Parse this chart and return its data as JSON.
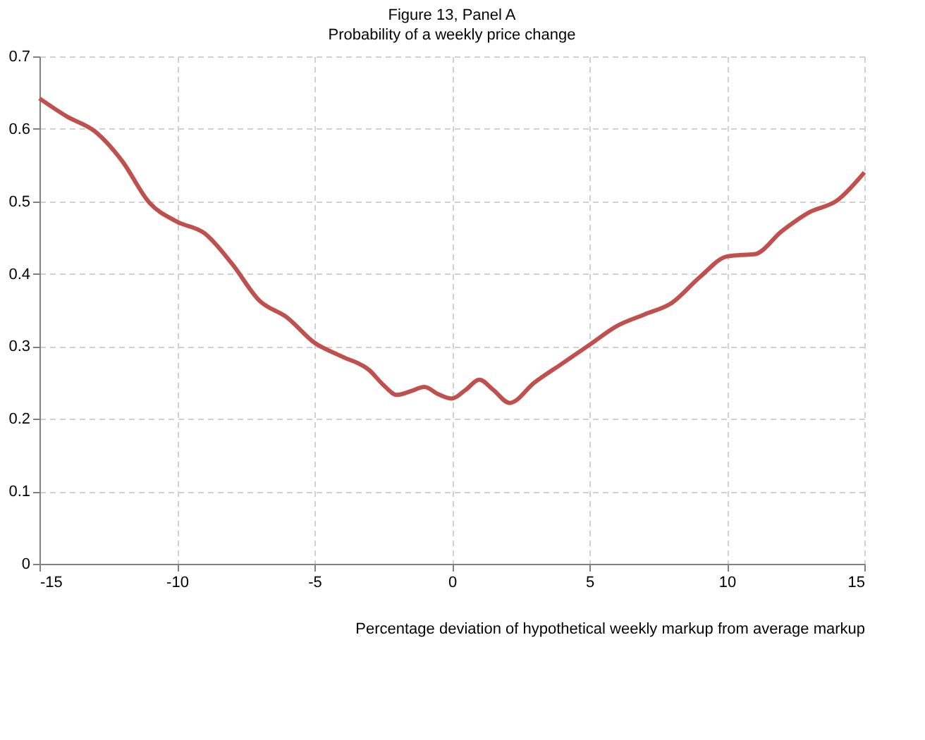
{
  "chart_data": {
    "type": "line",
    "title": "Figure 13, Panel A",
    "subtitle": "Probability of a weekly price change",
    "xlabel": "Percentage deviation of hypothetical weekly markup from average markup",
    "x": [
      -15,
      -14,
      -13,
      -12,
      -11,
      -10,
      -9,
      -8,
      -7,
      -6,
      -5,
      -4,
      -3,
      -2.5,
      -2,
      -1.5,
      -1,
      -0.5,
      0,
      0.5,
      1,
      1.5,
      2.1,
      3,
      4,
      5,
      6,
      7,
      8,
      9,
      10,
      10.5,
      11,
      12,
      13,
      14,
      15
    ],
    "series": [
      {
        "color": "#c0504d",
        "values": [
          0.642,
          0.617,
          0.597,
          0.556,
          0.498,
          0.472,
          0.456,
          0.414,
          0.363,
          0.34,
          0.305,
          0.286,
          0.267,
          0.247,
          0.233,
          0.238,
          0.244,
          0.234,
          0.228,
          0.24,
          0.254,
          0.24,
          0.222,
          0.25,
          0.276,
          0.302,
          0.328,
          0.344,
          0.36,
          0.395,
          0.424,
          0.426,
          0.427,
          0.459,
          0.485,
          0.501,
          0.54
        ]
      }
    ],
    "xlim": [
      -15,
      15
    ],
    "xticks": [
      -15,
      -10,
      -5,
      0,
      5,
      10,
      15
    ],
    "ylim": [
      0,
      0.7
    ],
    "yticks": [
      0,
      0.1,
      0.2,
      0.3,
      0.4,
      0.5,
      0.6,
      0.7
    ],
    "grid": true,
    "line_style": "solid",
    "marker": "none"
  }
}
